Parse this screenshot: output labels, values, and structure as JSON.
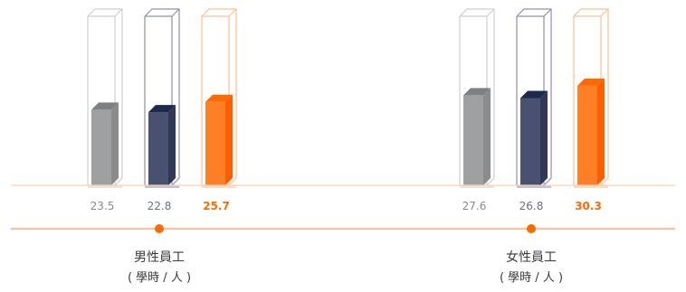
{
  "chart_data": {
    "type": "bar",
    "groups": [
      {
        "label": "男性員工",
        "unit": "( 學時 / 人 )",
        "values": [
          23.5,
          22.8,
          25.7
        ]
      },
      {
        "label": "女性員工",
        "unit": "( 學時 / 人 )",
        "values": [
          27.6,
          26.8,
          30.3
        ]
      }
    ],
    "ylim": [
      0,
      50
    ],
    "highlight_index": 2,
    "colors": {
      "bar_fills": [
        "#9fa0a2",
        "#4a5170",
        "#ff7f27"
      ],
      "bar_tops": [
        "#7f8082",
        "#1e2a4a",
        "#ff6a00"
      ],
      "bar_sides": [
        "#8a8b8d",
        "#2f3857",
        "#ff5e00"
      ],
      "container_strokes": [
        "#cfcfcf",
        "#8e90b3",
        "#ffbf94"
      ],
      "value_text": [
        "#8a8a8a",
        "#6b6f86",
        "#ff6a00"
      ],
      "baseline": "#ffd2b0",
      "axis_line": "#ff9a57",
      "axis_dot": "#ff6a00"
    }
  }
}
